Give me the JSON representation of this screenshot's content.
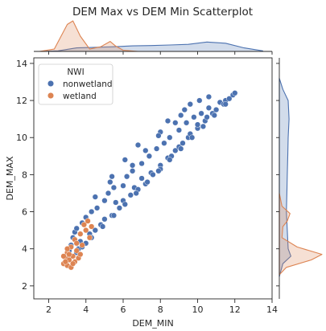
{
  "chart_data": {
    "type": "scatter",
    "title": "DEM Max vs DEM Min Scatterplot",
    "xlabel": "DEM_MIN",
    "ylabel": "DEM_MAX",
    "xlim": [
      1.2,
      14.0
    ],
    "ylim": [
      1.3,
      14.3
    ],
    "xticks": [
      2,
      4,
      6,
      8,
      10,
      12,
      14
    ],
    "yticks": [
      2,
      4,
      6,
      8,
      10,
      12,
      14
    ],
    "grid": false,
    "legend": {
      "title": "NWI",
      "placement": "top-left",
      "entries": [
        "nonwetland",
        "wetland"
      ]
    },
    "colors": {
      "nonwetland": "#4c72b0",
      "wetland": "#dd8452"
    },
    "series": [
      {
        "name": "nonwetland",
        "points": [
          [
            2.9,
            3.2
          ],
          [
            3.0,
            3.5
          ],
          [
            3.1,
            3.9
          ],
          [
            3.2,
            4.2
          ],
          [
            3.3,
            4.6
          ],
          [
            3.4,
            4.9
          ],
          [
            3.5,
            5.1
          ],
          [
            3.6,
            4.0
          ],
          [
            3.7,
            4.4
          ],
          [
            3.8,
            5.4
          ],
          [
            4.0,
            4.3
          ],
          [
            4.0,
            5.7
          ],
          [
            4.2,
            4.8
          ],
          [
            4.3,
            6.0
          ],
          [
            4.5,
            5.0
          ],
          [
            4.6,
            6.2
          ],
          [
            4.8,
            5.3
          ],
          [
            5.0,
            6.6
          ],
          [
            5.0,
            5.6
          ],
          [
            5.2,
            7.0
          ],
          [
            5.4,
            5.8
          ],
          [
            5.5,
            7.3
          ],
          [
            5.6,
            6.5
          ],
          [
            5.8,
            6.2
          ],
          [
            6.0,
            7.4
          ],
          [
            6.0,
            6.6
          ],
          [
            6.2,
            7.9
          ],
          [
            6.4,
            6.9
          ],
          [
            6.5,
            8.2
          ],
          [
            6.6,
            7.3
          ],
          [
            6.8,
            7.2
          ],
          [
            7.0,
            8.6
          ],
          [
            7.0,
            7.8
          ],
          [
            7.2,
            7.5
          ],
          [
            7.4,
            9.0
          ],
          [
            7.5,
            8.1
          ],
          [
            7.6,
            8.0
          ],
          [
            7.8,
            9.4
          ],
          [
            8.0,
            8.5
          ],
          [
            8.0,
            8.3
          ],
          [
            8.2,
            9.7
          ],
          [
            8.4,
            8.9
          ],
          [
            8.5,
            10.0
          ],
          [
            8.6,
            9.0
          ],
          [
            8.8,
            9.3
          ],
          [
            9.0,
            10.4
          ],
          [
            9.0,
            9.5
          ],
          [
            9.2,
            9.7
          ],
          [
            9.4,
            10.8
          ],
          [
            9.5,
            10.0
          ],
          [
            9.6,
            10.2
          ],
          [
            9.8,
            11.1
          ],
          [
            10.0,
            10.5
          ],
          [
            10.0,
            10.7
          ],
          [
            10.2,
            11.3
          ],
          [
            10.4,
            10.9
          ],
          [
            10.5,
            11.1
          ],
          [
            10.6,
            11.6
          ],
          [
            10.8,
            11.3
          ],
          [
            11.0,
            11.5
          ],
          [
            11.2,
            11.9
          ],
          [
            11.4,
            11.8
          ],
          [
            11.5,
            12.0
          ],
          [
            11.7,
            12.1
          ],
          [
            11.9,
            12.3
          ],
          [
            12.0,
            12.4
          ],
          [
            4.5,
            6.8
          ],
          [
            5.3,
            7.6
          ],
          [
            6.1,
            8.8
          ],
          [
            6.8,
            9.6
          ],
          [
            7.2,
            9.3
          ],
          [
            8.0,
            10.3
          ],
          [
            8.4,
            10.9
          ],
          [
            9.1,
            11.2
          ],
          [
            9.6,
            11.8
          ],
          [
            10.1,
            12.0
          ],
          [
            10.6,
            12.2
          ],
          [
            5.4,
            7.9
          ],
          [
            7.9,
            10.1
          ],
          [
            9.3,
            11.5
          ],
          [
            6.5,
            8.5
          ],
          [
            8.8,
            10.8
          ],
          [
            3.3,
            3.6
          ],
          [
            3.5,
            3.8
          ],
          [
            3.8,
            4.1
          ],
          [
            4.3,
            4.6
          ],
          [
            4.9,
            5.2
          ],
          [
            5.5,
            5.8
          ],
          [
            6.1,
            6.4
          ],
          [
            6.7,
            7.0
          ],
          [
            7.3,
            7.6
          ],
          [
            7.9,
            8.2
          ],
          [
            8.5,
            8.8
          ],
          [
            9.1,
            9.4
          ],
          [
            9.7,
            10.0
          ],
          [
            10.3,
            10.6
          ],
          [
            10.9,
            11.2
          ],
          [
            11.5,
            11.8
          ]
        ]
      },
      {
        "name": "wetland",
        "points": [
          [
            2.8,
            3.2
          ],
          [
            2.9,
            3.5
          ],
          [
            3.0,
            3.1
          ],
          [
            3.0,
            3.8
          ],
          [
            3.1,
            3.4
          ],
          [
            3.2,
            3.0
          ],
          [
            3.2,
            4.1
          ],
          [
            3.3,
            3.6
          ],
          [
            3.4,
            3.3
          ],
          [
            3.4,
            4.5
          ],
          [
            3.5,
            3.9
          ],
          [
            3.6,
            3.5
          ],
          [
            3.7,
            4.8
          ],
          [
            3.8,
            4.2
          ],
          [
            3.9,
            5.3
          ],
          [
            4.0,
            5.0
          ],
          [
            4.1,
            5.5
          ],
          [
            4.2,
            4.6
          ],
          [
            4.3,
            5.2
          ],
          [
            2.9,
            3.3
          ],
          [
            3.1,
            3.7
          ],
          [
            3.3,
            3.2
          ],
          [
            3.5,
            4.3
          ],
          [
            3.7,
            3.7
          ],
          [
            3.0,
            4.0
          ],
          [
            2.8,
            3.6
          ]
        ]
      }
    ],
    "marginal_x": {
      "nonwetland": {
        "x": [
          1.5,
          2.5,
          3.5,
          4.5,
          5.5,
          6.5,
          7.5,
          8.5,
          9.5,
          10.5,
          11.5,
          12.5,
          13.5
        ],
        "density": [
          0.0,
          0.1,
          0.6,
          0.7,
          0.8,
          0.95,
          1.0,
          1.1,
          1.2,
          1.6,
          1.4,
          0.6,
          0.1
        ]
      },
      "wetland": {
        "x": [
          1.5,
          2.3,
          3.0,
          3.3,
          3.7,
          4.2,
          4.8,
          5.3,
          5.6,
          6.0,
          6.8
        ],
        "density": [
          0.0,
          0.4,
          4.6,
          5.2,
          2.6,
          0.4,
          0.8,
          1.7,
          0.9,
          0.2,
          0.0
        ]
      }
    },
    "marginal_y": {
      "nonwetland": {
        "y": [
          2.5,
          3.2,
          3.6,
          4.0,
          5.0,
          6.0,
          7.0,
          8.0,
          9.0,
          10.0,
          11.0,
          12.0,
          12.6,
          13.2
        ],
        "density": [
          0.0,
          0.4,
          1.3,
          1.0,
          0.9,
          0.8,
          0.85,
          0.9,
          0.95,
          1.0,
          1.1,
          1.0,
          0.4,
          0.0
        ]
      },
      "wetland": {
        "y": [
          2.6,
          3.0,
          3.4,
          3.7,
          4.1,
          4.6,
          5.2,
          5.5,
          5.9,
          6.3,
          7.0
        ],
        "density": [
          0.0,
          0.8,
          3.6,
          4.8,
          2.0,
          0.3,
          0.4,
          0.9,
          1.2,
          0.3,
          0.0
        ]
      }
    }
  }
}
